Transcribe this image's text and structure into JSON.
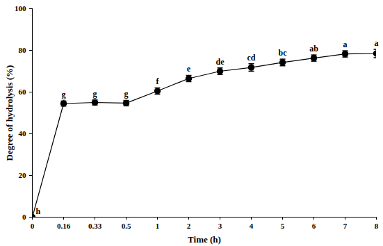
{
  "chart_data": {
    "type": "line",
    "x_label": "Time (h)",
    "y_label": "Degree of hydrolysis (%)",
    "categories": [
      "0",
      "0.16",
      "0.33",
      "0.5",
      "1",
      "2",
      "3",
      "4",
      "5",
      "6",
      "7",
      "8"
    ],
    "values": [
      0,
      54.5,
      55,
      54.7,
      60.5,
      66.5,
      70,
      71.8,
      74.2,
      76.3,
      78.3,
      78.5
    ],
    "errors": [
      0,
      1.2,
      1.2,
      1.3,
      1.5,
      1.5,
      1.6,
      1.8,
      1.6,
      1.5,
      1.5,
      2.0
    ],
    "annotations": [
      "h",
      "g",
      "g",
      "g",
      "f",
      "e",
      "de",
      "cd",
      "bc",
      "ab",
      "a",
      "a"
    ],
    "ylim": [
      0,
      100
    ],
    "yticks": [
      0,
      20,
      40,
      60,
      80,
      100
    ],
    "color": "#000000",
    "marker": "circle",
    "grid": false
  }
}
